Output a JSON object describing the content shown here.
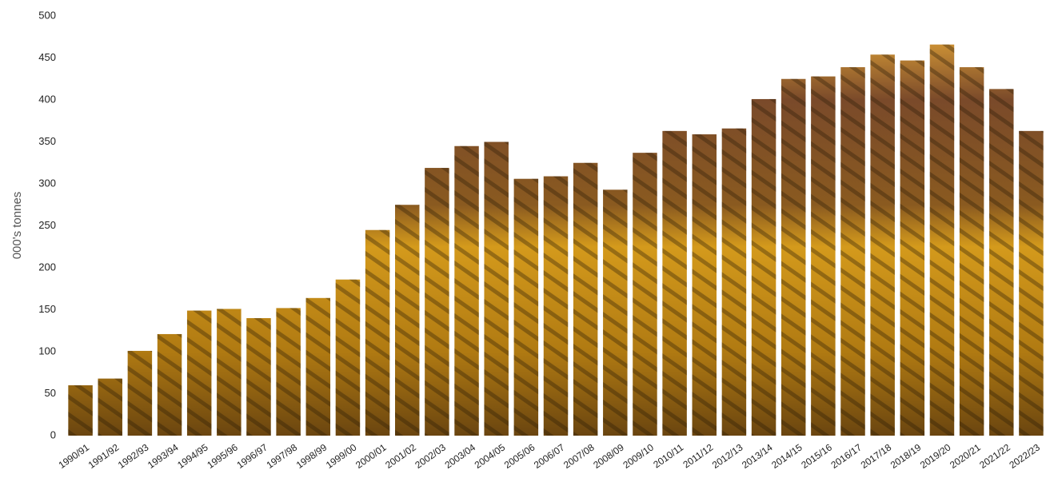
{
  "chart_data": {
    "type": "bar",
    "y_label": "000's  tonnes",
    "categories": [
      "1990/91",
      "1991/92",
      "1992/93",
      "1993/94",
      "1994/95",
      "1995/96",
      "1996/97",
      "1997/98",
      "1998/99",
      "1999/00",
      "2000/01",
      "2001/02",
      "2002/03",
      "2003/04",
      "2004/05",
      "2005/06",
      "2006/07",
      "2007/08",
      "2008/09",
      "2009/10",
      "2010/11",
      "2011/12",
      "2012/13",
      "2013/14",
      "2014/15",
      "2015/16",
      "2016/17",
      "2017/18",
      "2018/19",
      "2019/20",
      "2020/21",
      "2021/22",
      "2022/23"
    ],
    "values": [
      60,
      68,
      101,
      121,
      149,
      151,
      140,
      152,
      164,
      186,
      245,
      275,
      319,
      345,
      350,
      306,
      309,
      325,
      293,
      337,
      363,
      359,
      366,
      401,
      425,
      428,
      439,
      454,
      447,
      466,
      439,
      413,
      363
    ],
    "color": "#d49a1c",
    "ylim": [
      0,
      500
    ],
    "yticks": [
      0,
      50,
      100,
      150,
      200,
      250,
      300,
      350,
      400,
      450,
      500
    ],
    "grid": false
  }
}
